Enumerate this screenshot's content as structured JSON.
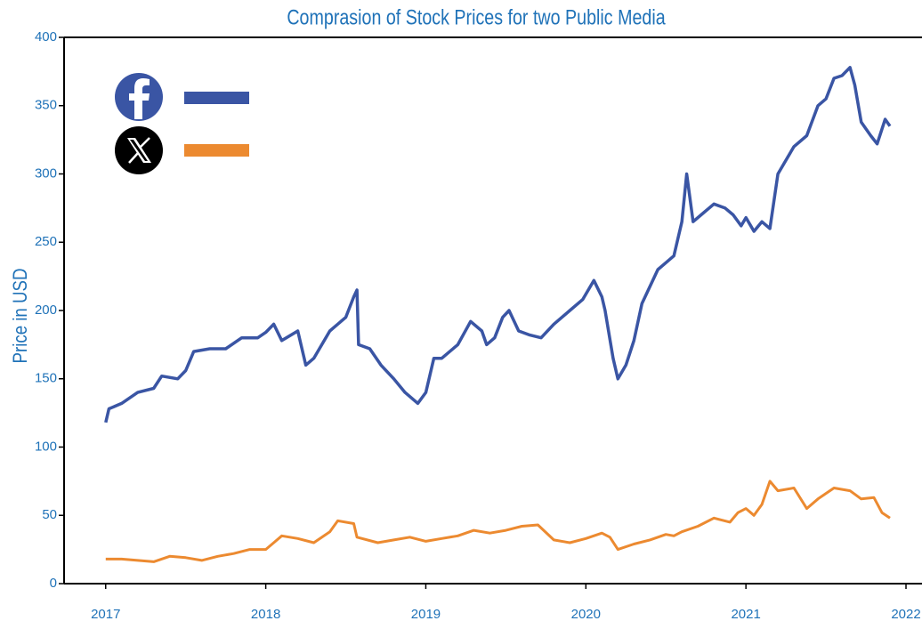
{
  "chart_data": {
    "type": "line",
    "title": "Comprasion of Stock Prices for two Public Media",
    "y_label": "Price in USD",
    "xlim": [
      2016.74,
      2022.1
    ],
    "xticks": [
      2017,
      2018,
      2019,
      2020,
      2021,
      2022
    ],
    "ylim": [
      0,
      400
    ],
    "yticks": [
      0,
      50,
      100,
      150,
      200,
      250,
      300,
      350,
      400
    ],
    "legend": "upper left",
    "series": [
      {
        "color": "#3a55a4",
        "x": [
          2017.0,
          2017.02,
          2017.1,
          2017.2,
          2017.3,
          2017.35,
          2017.45,
          2017.5,
          2017.55,
          2017.65,
          2017.75,
          2017.85,
          2017.95,
          2018.0,
          2018.05,
          2018.1,
          2018.2,
          2018.25,
          2018.3,
          2018.35,
          2018.4,
          2018.5,
          2018.55,
          2018.57,
          2018.58,
          2018.65,
          2018.72,
          2018.8,
          2018.87,
          2018.95,
          2019.0,
          2019.05,
          2019.1,
          2019.2,
          2019.28,
          2019.35,
          2019.38,
          2019.43,
          2019.48,
          2019.52,
          2019.58,
          2019.65,
          2019.72,
          2019.8,
          2019.9,
          2019.98,
          2020.05,
          2020.1,
          2020.12,
          2020.17,
          2020.2,
          2020.25,
          2020.3,
          2020.35,
          2020.45,
          2020.5,
          2020.55,
          2020.6,
          2020.63,
          2020.67,
          2020.72,
          2020.8,
          2020.87,
          2020.92,
          2020.97,
          2021.0,
          2021.05,
          2021.1,
          2021.15,
          2021.2,
          2021.25,
          2021.3,
          2021.38,
          2021.45,
          2021.5,
          2021.55,
          2021.6,
          2021.65,
          2021.68,
          2021.72,
          2021.78,
          2021.82,
          2021.87,
          2021.9
        ],
        "values": [
          118,
          128,
          132,
          140,
          143,
          152,
          150,
          156,
          170,
          172,
          172,
          180,
          180,
          184,
          190,
          178,
          185,
          160,
          165,
          175,
          185,
          195,
          210,
          215,
          175,
          172,
          160,
          150,
          140,
          132,
          140,
          165,
          165,
          175,
          192,
          185,
          175,
          180,
          195,
          200,
          185,
          182,
          180,
          190,
          200,
          208,
          222,
          210,
          200,
          165,
          150,
          160,
          178,
          205,
          230,
          235,
          240,
          265,
          300,
          265,
          270,
          278,
          275,
          270,
          262,
          268,
          258,
          265,
          260,
          300,
          310,
          320,
          328,
          350,
          355,
          370,
          372,
          378,
          365,
          338,
          328,
          322,
          340,
          335
        ]
      },
      {
        "color": "#ec8a30",
        "x": [
          2017.0,
          2017.1,
          2017.2,
          2017.3,
          2017.4,
          2017.5,
          2017.6,
          2017.7,
          2017.8,
          2017.9,
          2018.0,
          2018.05,
          2018.1,
          2018.2,
          2018.3,
          2018.4,
          2018.45,
          2018.55,
          2018.57,
          2018.7,
          2018.8,
          2018.9,
          2019.0,
          2019.1,
          2019.2,
          2019.3,
          2019.4,
          2019.5,
          2019.6,
          2019.7,
          2019.8,
          2019.9,
          2020.0,
          2020.1,
          2020.15,
          2020.2,
          2020.3,
          2020.4,
          2020.5,
          2020.55,
          2020.6,
          2020.7,
          2020.8,
          2020.9,
          2020.95,
          2021.0,
          2021.05,
          2021.1,
          2021.15,
          2021.2,
          2021.3,
          2021.38,
          2021.45,
          2021.55,
          2021.65,
          2021.72,
          2021.8,
          2021.85,
          2021.9
        ],
        "values": [
          18,
          18,
          17,
          16,
          20,
          19,
          17,
          20,
          22,
          25,
          25,
          30,
          35,
          33,
          30,
          38,
          46,
          44,
          34,
          30,
          32,
          34,
          31,
          33,
          35,
          39,
          37,
          39,
          42,
          43,
          32,
          30,
          33,
          37,
          34,
          25,
          29,
          32,
          36,
          35,
          38,
          42,
          48,
          45,
          52,
          55,
          50,
          58,
          75,
          68,
          70,
          55,
          62,
          70,
          68,
          62,
          63,
          52,
          48
        ]
      }
    ]
  }
}
